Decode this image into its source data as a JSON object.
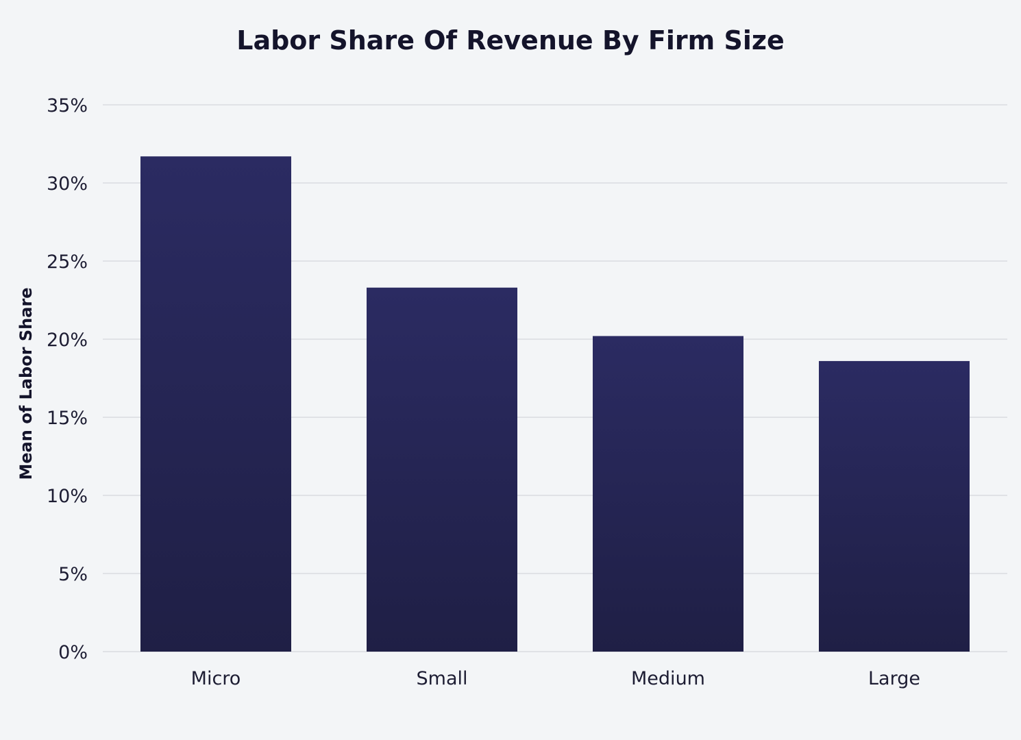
{
  "chart_data": {
    "type": "bar",
    "title": "Labor Share Of Revenue By Firm Size",
    "xlabel": "",
    "ylabel": "Mean of Labor Share",
    "categories": [
      "Micro",
      "Small",
      "Medium",
      "Large"
    ],
    "values": [
      31.7,
      23.3,
      20.2,
      18.6
    ],
    "ylim": [
      0,
      35
    ],
    "yticks": [
      0,
      5,
      10,
      15,
      20,
      25,
      30,
      35
    ],
    "ytick_labels": [
      "0%",
      "5%",
      "10%",
      "15%",
      "20%",
      "25%",
      "30%",
      "35%"
    ],
    "y_unit": "percent",
    "grid": true,
    "legend": "none",
    "colors": {
      "bar_top": "#2b2b62",
      "bar_bottom": "#1f1f45",
      "grid": "#d4d7dc",
      "background": "#f3f5f7",
      "text": "#14142b"
    }
  }
}
